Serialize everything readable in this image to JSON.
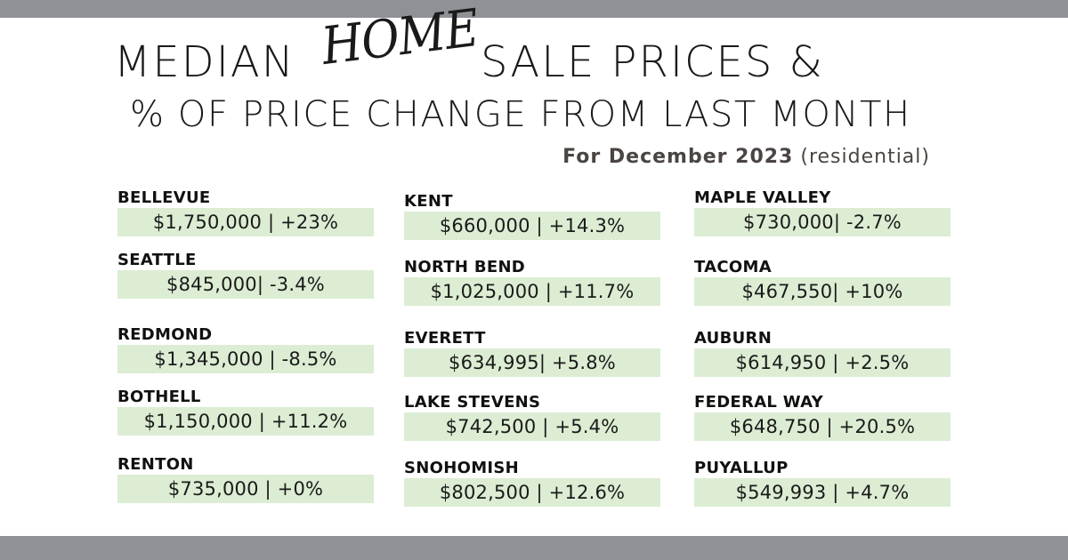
{
  "header": {
    "title_word1": "MEDIAN",
    "title_script": "HOME",
    "title_rest": "SALE PRICES &",
    "title_line2": "% OF PRICE CHANGE FROM LAST MONTH",
    "subtitle_bold": "For December 2023",
    "subtitle_light": "(residential)"
  },
  "columns": [
    [
      {
        "name": "BELLEVUE",
        "value": "$1,750,000 | +23%"
      },
      {
        "name": "SEATTLE",
        "value": "$845,000| -3.4%"
      },
      {
        "name": "REDMOND",
        "value": "$1,345,000 | -8.5%"
      },
      {
        "name": "BOTHELL",
        "value": "$1,150,000 | +11.2%"
      },
      {
        "name": "RENTON",
        "value": "$735,000 | +0%"
      }
    ],
    [
      {
        "name": "KENT",
        "value": "$660,000 | +14.3%"
      },
      {
        "name": "NORTH BEND",
        "value": "$1,025,000 | +11.7%"
      },
      {
        "name": "EVERETT",
        "value": "$634,995| +5.8%"
      },
      {
        "name": "LAKE STEVENS",
        "value": "$742,500 | +5.4%"
      },
      {
        "name": "SNOHOMISH",
        "value": "$802,500 | +12.6%"
      }
    ],
    [
      {
        "name": "MAPLE VALLEY",
        "value": "$730,000| -2.7%"
      },
      {
        "name": "TACOMA",
        "value": "$467,550| +10%"
      },
      {
        "name": "AUBURN",
        "value": "$614,950 | +2.5%"
      },
      {
        "name": "FEDERAL WAY",
        "value": "$648,750 | +20.5%"
      },
      {
        "name": "PUYALLUP",
        "value": "$549,993 | +4.7%"
      }
    ]
  ],
  "colors": {
    "bar": "#8e9297",
    "box": "#dcedd3",
    "text": "#1a1a1a",
    "subtitle": "#4a4542"
  }
}
